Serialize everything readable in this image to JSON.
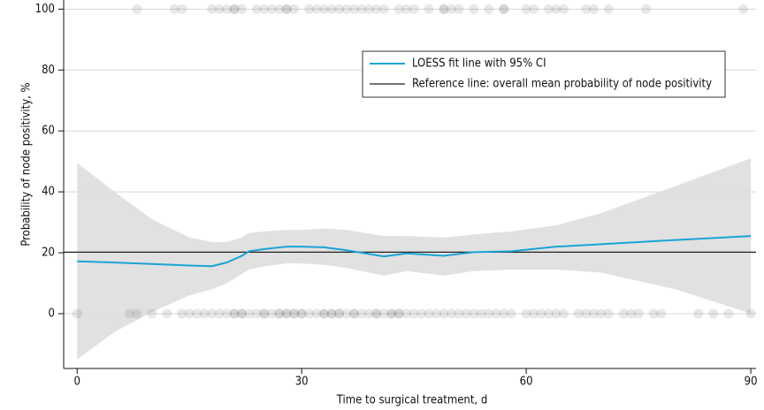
{
  "chart_data": {
    "type": "line",
    "x_label": "Time to surgical treatment, d",
    "y_label": "Probability of node positivity, %",
    "xlim": [
      -1.8,
      90.7
    ],
    "ylim": [
      -18,
      103
    ],
    "xticks": [
      0,
      30,
      60,
      90
    ],
    "yticks": [
      0,
      20,
      40,
      60,
      80,
      100
    ],
    "grid": true,
    "legend": "upper right",
    "series": [
      {
        "name": "LOESS fit line with 95% CI",
        "color": "#1ba3d6",
        "x": [
          0,
          5,
          10,
          15,
          18,
          20,
          22,
          23,
          25,
          28,
          30,
          33,
          36,
          41,
          44,
          49,
          53,
          58,
          64,
          70,
          80,
          90
        ],
        "values": [
          17.2,
          16.8,
          16.3,
          15.8,
          15.6,
          16.8,
          19,
          20.5,
          21.2,
          22,
          22,
          21.8,
          20.8,
          18.8,
          19.8,
          19,
          20.2,
          20.5,
          22,
          22.8,
          24.2,
          25.5
        ],
        "ci_upper": [
          49.5,
          40,
          31,
          25,
          23.5,
          23.5,
          25,
          26.5,
          27,
          27.5,
          27.5,
          28,
          27.5,
          25.5,
          25.5,
          25,
          26,
          27,
          29,
          33,
          42,
          51
        ],
        "ci_lower": [
          -15,
          -6,
          0.5,
          6,
          8,
          10,
          13,
          14.5,
          15.5,
          16.5,
          16.5,
          16,
          15,
          12.5,
          14,
          12.5,
          14,
          14.5,
          14.5,
          13.5,
          8,
          0
        ],
        "ci_color": "#dcdcdc"
      }
    ],
    "reference_line": {
      "name": "Reference line: overall mean probability of node positivity",
      "color": "#222222",
      "value": 20.2
    },
    "points": [
      {
        "y": 0,
        "color": "#505050",
        "x": [
          0,
          7,
          8,
          10,
          12,
          14,
          15,
          16,
          17,
          18,
          19,
          20,
          21,
          21,
          22,
          22,
          23,
          24,
          25,
          25,
          26,
          27,
          27,
          28,
          28,
          29,
          29,
          30,
          30,
          31,
          32,
          33,
          33,
          34,
          34,
          35,
          35,
          36,
          37,
          37,
          38,
          39,
          40,
          40,
          41,
          42,
          42,
          43,
          43,
          44,
          45,
          46,
          47,
          48,
          49,
          50,
          51,
          52,
          53,
          54,
          55,
          56,
          57,
          58,
          60,
          61,
          62,
          63,
          64,
          65,
          67,
          68,
          69,
          70,
          71,
          73,
          74,
          75,
          77,
          78,
          83,
          85,
          87,
          90
        ]
      },
      {
        "y": 100,
        "color": "#505050",
        "x": [
          8,
          13,
          14,
          18,
          19,
          20,
          21,
          21,
          22,
          24,
          25,
          26,
          27,
          28,
          28,
          29,
          31,
          32,
          33,
          34,
          35,
          36,
          37,
          38,
          39,
          40,
          41,
          43,
          44,
          45,
          47,
          49,
          49,
          50,
          51,
          53,
          55,
          57,
          57,
          60,
          61,
          63,
          64,
          65,
          68,
          69,
          71,
          76,
          89
        ]
      }
    ]
  }
}
